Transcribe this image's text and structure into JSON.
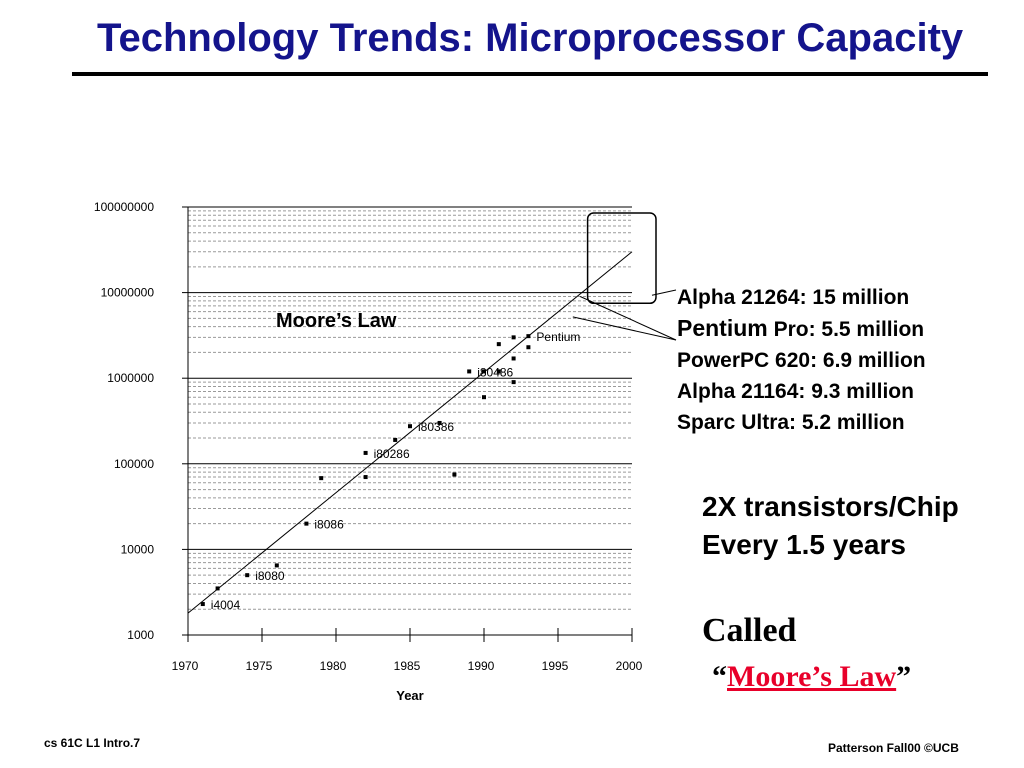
{
  "slide": {
    "title": "Technology Trends: Microprocessor Capacity",
    "footer_left": "cs 61C  L1 Intro.7",
    "footer_right": "Patterson Fall00  ©UCB"
  },
  "annotations": {
    "moores_law_label": "Moore’s Law",
    "processors": [
      {
        "name": "Alpha",
        "detail": " 21264: 15 million"
      },
      {
        "name": "Pentium",
        "detail": " Pro: 5.5 million"
      },
      {
        "name": "PowerPC",
        "detail": " 620: 6.9 million"
      },
      {
        "name": "Alpha",
        "detail": " 21164: 9.3 million"
      },
      {
        "name": "Sparc",
        "detail": " Ultra: 5.2 million"
      }
    ],
    "trend_line1": "2X transistors/Chip",
    "trend_line2": "Every 1.5 years",
    "called": "Called",
    "open_quote": "“",
    "moores_law_link": "Moore’s Law",
    "close_quote": "”"
  },
  "chart_data": {
    "type": "scatter",
    "title": "",
    "xlabel": "Year",
    "ylabel": "",
    "x_ticks": [
      1970,
      1975,
      1980,
      1985,
      1990,
      1995,
      2000
    ],
    "y_ticks": [
      1000,
      10000,
      100000,
      1000000,
      10000000,
      100000000
    ],
    "y_tick_labels": [
      "1000",
      "10000",
      "100000",
      "1000000",
      "10000000",
      "100000000"
    ],
    "xlim": [
      1970,
      2000
    ],
    "ylim": [
      1000,
      100000000
    ],
    "y_scale": "log",
    "grid": true,
    "trend_line": {
      "label": "Moore’s Law",
      "x": [
        1970,
        2000
      ],
      "y": [
        1800,
        30000000
      ]
    },
    "points": [
      {
        "x": 1971,
        "y": 2300,
        "label": "i4004"
      },
      {
        "x": 1972,
        "y": 3500
      },
      {
        "x": 1974,
        "y": 5000,
        "label": "i8080"
      },
      {
        "x": 1976,
        "y": 6500
      },
      {
        "x": 1978,
        "y": 20000,
        "label": "i8086"
      },
      {
        "x": 1979,
        "y": 68000
      },
      {
        "x": 1982,
        "y": 134000,
        "label": "i80286"
      },
      {
        "x": 1982,
        "y": 70000
      },
      {
        "x": 1984,
        "y": 190000
      },
      {
        "x": 1985,
        "y": 275000,
        "label": "i80386"
      },
      {
        "x": 1987,
        "y": 300000
      },
      {
        "x": 1988,
        "y": 75000
      },
      {
        "x": 1989,
        "y": 1200000,
        "label": "i80486"
      },
      {
        "x": 1990,
        "y": 1200000
      },
      {
        "x": 1990,
        "y": 600000
      },
      {
        "x": 1991,
        "y": 1200000
      },
      {
        "x": 1991,
        "y": 2500000
      },
      {
        "x": 1992,
        "y": 3000000
      },
      {
        "x": 1992,
        "y": 1700000
      },
      {
        "x": 1992,
        "y": 900000
      },
      {
        "x": 1993,
        "y": 3100000,
        "label": "Pentium"
      },
      {
        "x": 1993,
        "y": 2300000
      }
    ],
    "highlight_box": {
      "x": [
        1997,
        2002
      ],
      "y": [
        7500000,
        100000000
      ]
    }
  }
}
